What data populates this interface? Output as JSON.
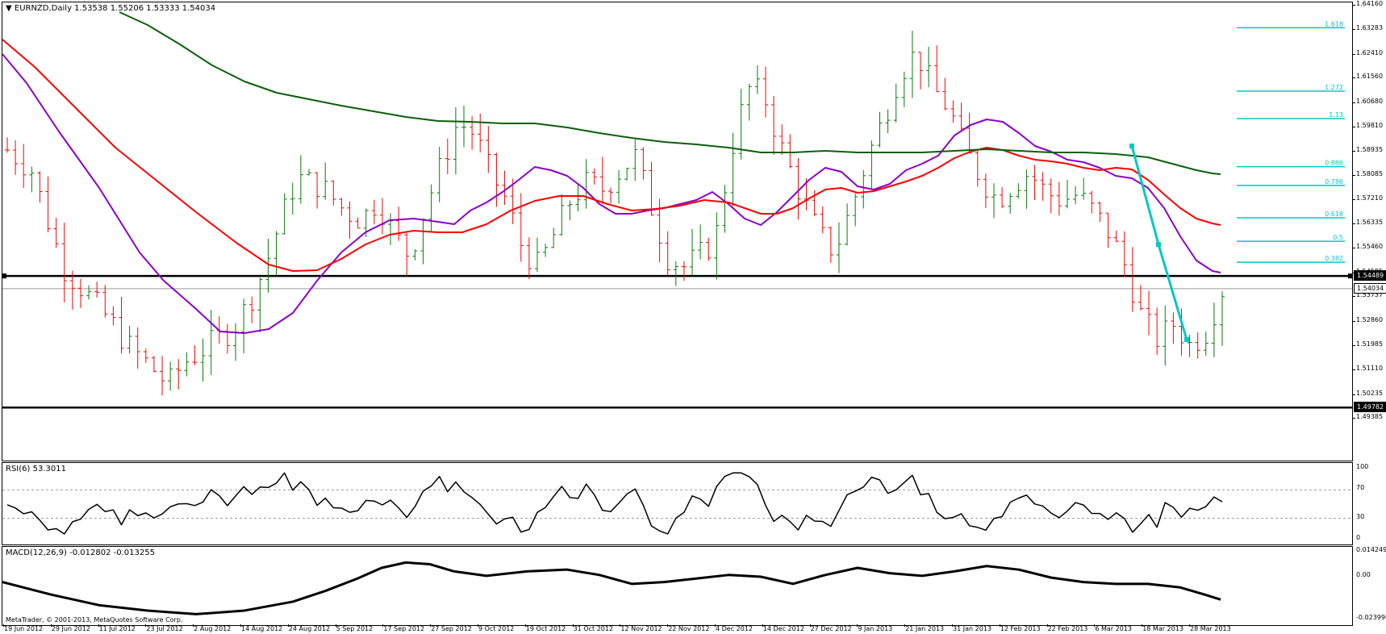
{
  "colors": {
    "bull": "#0a7a0a",
    "bear": "#ff0000",
    "ma_fast": "#8b00c8",
    "ma_mid": "#ff0000",
    "ma_slow": "#0b5f0b",
    "fib": "#00c8c8",
    "trendline": "#00c8c8",
    "line": "#000000",
    "grid": "#9a9a9a"
  },
  "main": {
    "title": "EURNZD,Daily  1.53538 1.55206 1.53333 1.54034",
    "triangle_icon": "triangle-down-icon",
    "price_range": [
      1.49385,
      1.6425
    ],
    "axis_ticks": [
      "1.64160",
      "1.63283",
      "1.62410",
      "1.61560",
      "1.60680",
      "1.59810",
      "1.58935",
      "1.58085",
      "1.57210",
      "1.56335",
      "1.55460",
      "1.54585",
      "1.53737",
      "1.52860",
      "1.51985",
      "1.51110",
      "1.50235",
      "1.49385"
    ],
    "horizontal_lines": [
      {
        "price": 1.54489,
        "label": "1.54489",
        "style": "black"
      },
      {
        "price": 1.49782,
        "label": "1.49782",
        "style": "black"
      }
    ],
    "current_price": {
      "price": 1.54034,
      "label": "1.54034"
    },
    "fib_levels": [
      {
        "label": "1.618",
        "price": 1.6337
      },
      {
        "label": "1.272",
        "price": 1.611
      },
      {
        "label": "1.13",
        "price": 1.6012
      },
      {
        "label": "0.886",
        "price": 1.584
      },
      {
        "label": "0.786",
        "price": 1.5773
      },
      {
        "label": "0.618",
        "price": 1.5657
      },
      {
        "label": "0.5",
        "price": 1.5573
      },
      {
        "label": "0.382",
        "price": 1.5498
      }
    ],
    "copyright": "MetaTrader, © 2001-2013, MetaQuotes Software Corp."
  },
  "rsi": {
    "title": "RSI(6) 53.3011",
    "axis_ticks": [
      "100",
      "70",
      "30",
      "0"
    ],
    "levels": [
      70,
      30
    ]
  },
  "macd": {
    "title": "MACD(12,26,9) -0.012802 -0.013255",
    "axis_ticks": [
      "0.014249",
      "0.00",
      "-0.023996"
    ],
    "range": [
      -0.024,
      0.0145
    ]
  },
  "time_axis": [
    "19 Jun 2012",
    "29 Jun 2012",
    "11 Jul 2012",
    "23 Jul 2012",
    "2 Aug 2012",
    "14 Aug 2012",
    "24 Aug 2012",
    "5 Sep 2012",
    "17 Sep 2012",
    "27 Sep 2012",
    "9 Oct 2012",
    "19 Oct 2012",
    "31 Oct 2012",
    "12 Nov 2012",
    "22 Nov 2012",
    "4 Dec 2012",
    "14 Dec 2012",
    "27 Dec 2012",
    "9 Jan 2013",
    "21 Jan 2013",
    "31 Jan 2013",
    "12 Feb 2013",
    "22 Feb 2013",
    "6 Mar 2013",
    "18 Mar 2013",
    "28 Mar 2013"
  ]
}
